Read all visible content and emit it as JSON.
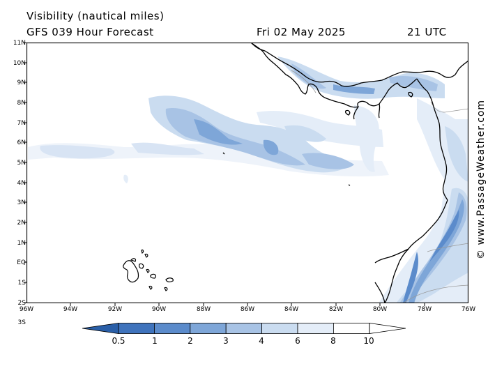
{
  "header": {
    "title": "Visibility (nautical miles)",
    "subtitle": "GFS 039 Hour Forecast",
    "date": "Fri 02 May 2025",
    "time": "21 UTC"
  },
  "axes": {
    "latitude_labels": [
      "11N",
      "10N",
      "9N",
      "8N",
      "7N",
      "6N",
      "5N",
      "4N",
      "3N",
      "2N",
      "1N",
      "EQ",
      "1S",
      "2S",
      "3S"
    ],
    "longitude_labels": [
      "96W",
      "94W",
      "92W",
      "90W",
      "88W",
      "86W",
      "84W",
      "82W",
      "80W",
      "78W",
      "76W"
    ]
  },
  "colorbar": {
    "labels": [
      "0.5",
      "1",
      "2",
      "3",
      "4",
      "6",
      "8",
      "10"
    ],
    "colors": [
      "#2a5fa8",
      "#3f73bc",
      "#5b8bcb",
      "#7ea6d8",
      "#a8c3e5",
      "#cadcf0",
      "#e4edf8",
      "#ffffff"
    ]
  },
  "credit": "© www.PassageWeather.com",
  "colors": {
    "coastline": "#000000",
    "border": "#999999",
    "frame": "#000000"
  }
}
